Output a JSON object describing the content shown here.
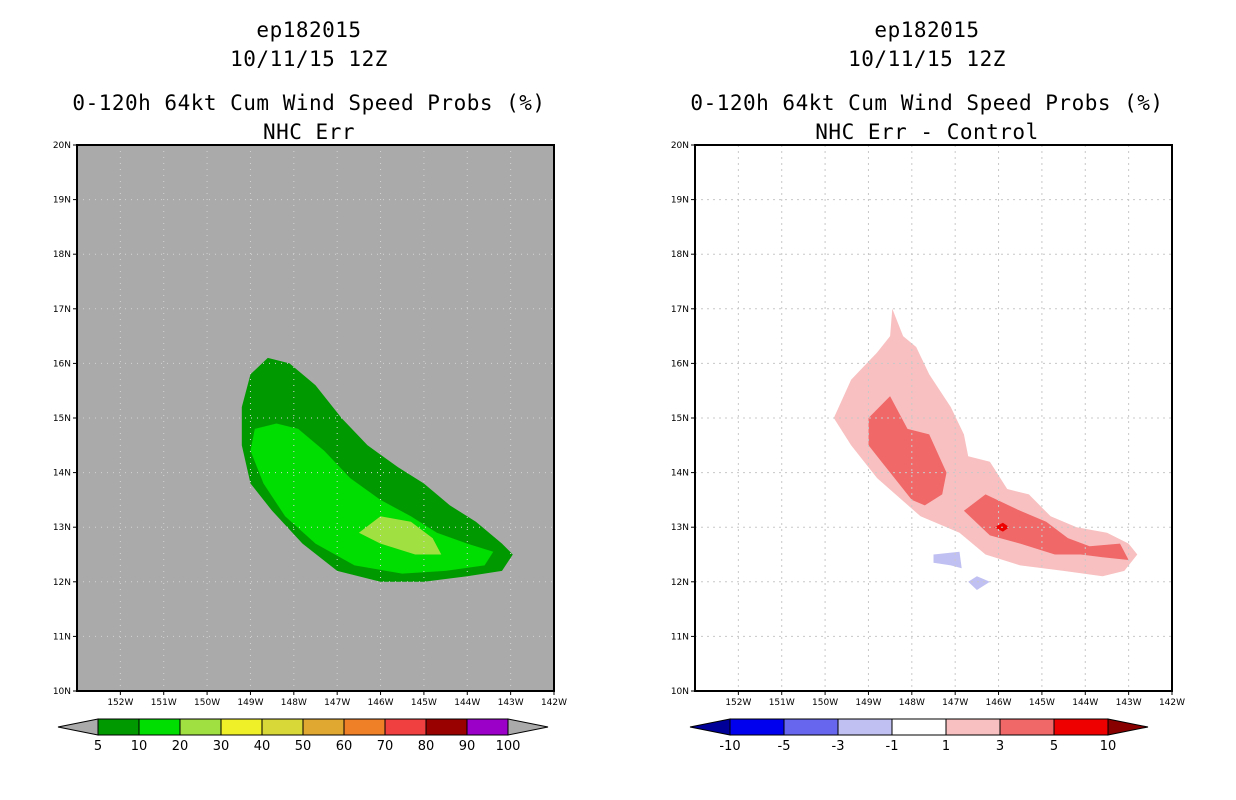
{
  "left": {
    "title": {
      "storm": "ep182015",
      "datetime": "10/11/15 12Z",
      "product": "0-120h 64kt Cum Wind Speed Probs (%)",
      "subtitle": "NHC Err"
    },
    "colorbar": {
      "labels": [
        "5",
        "10",
        "20",
        "30",
        "40",
        "50",
        "60",
        "70",
        "80",
        "90",
        "100"
      ],
      "colors": [
        "#009900",
        "#00dd00",
        "#a0e040",
        "#f0f028",
        "#d8d838",
        "#e0a830",
        "#f08028",
        "#f04040",
        "#990000",
        "#9a00c8"
      ],
      "under_color": "#aaaaaa",
      "over_color": "#aaaaaa"
    },
    "background_color": "#aaaaaa"
  },
  "right": {
    "title": {
      "storm": "ep182015",
      "datetime": "10/11/15 12Z",
      "product": "0-120h 64kt Cum Wind Speed Probs (%)",
      "subtitle": "NHC Err - Control"
    },
    "colorbar": {
      "labels": [
        "-10",
        "-5",
        "-3",
        "-1",
        "1",
        "3",
        "5",
        "10"
      ],
      "colors": [
        "#0000ee",
        "#6666ee",
        "#c0c0f2",
        "#ffffff",
        "#f8c0c0",
        "#f06868",
        "#ee0000"
      ],
      "under_color": "#000099",
      "over_color": "#880000"
    },
    "background_color": "#ffffff"
  },
  "chart_data": [
    {
      "type": "contour-map",
      "title": "ep182015 10/11/15 12Z 0-120h 64kt Cum Wind Speed Probs (%) NHC Err",
      "xlim": [
        -153,
        -142
      ],
      "ylim": [
        10,
        20
      ],
      "x_ticks": [
        -152,
        -151,
        -150,
        -149,
        -148,
        -147,
        -146,
        -145,
        -144,
        -143,
        -142
      ],
      "x_tick_labels": [
        "152W",
        "151W",
        "150W",
        "149W",
        "148W",
        "147W",
        "146W",
        "145W",
        "144W",
        "143W",
        "142W"
      ],
      "y_ticks": [
        10,
        11,
        12,
        13,
        14,
        15,
        16,
        17,
        18,
        19,
        20
      ],
      "y_tick_labels": [
        "10N",
        "11N",
        "12N",
        "13N",
        "14N",
        "15N",
        "16N",
        "17N",
        "18N",
        "19N",
        "20N"
      ],
      "grid": true,
      "levels": [
        {
          "range": "5-10",
          "color": "#009900",
          "polygon": [
            [
              -149.0,
              15.8
            ],
            [
              -148.6,
              16.1
            ],
            [
              -148.1,
              16.0
            ],
            [
              -147.5,
              15.6
            ],
            [
              -146.9,
              15.0
            ],
            [
              -146.3,
              14.5
            ],
            [
              -145.6,
              14.1
            ],
            [
              -145.0,
              13.8
            ],
            [
              -144.4,
              13.4
            ],
            [
              -143.8,
              13.1
            ],
            [
              -143.2,
              12.7
            ],
            [
              -142.95,
              12.5
            ],
            [
              -143.2,
              12.2
            ],
            [
              -144.0,
              12.1
            ],
            [
              -145.0,
              12.0
            ],
            [
              -146.0,
              12.0
            ],
            [
              -147.0,
              12.2
            ],
            [
              -147.8,
              12.7
            ],
            [
              -148.5,
              13.3
            ],
            [
              -149.0,
              13.8
            ],
            [
              -149.2,
              14.5
            ],
            [
              -149.2,
              15.2
            ]
          ]
        },
        {
          "range": "10-20",
          "color": "#00dd00",
          "polygon": [
            [
              -148.9,
              14.8
            ],
            [
              -148.4,
              14.9
            ],
            [
              -147.9,
              14.8
            ],
            [
              -147.3,
              14.4
            ],
            [
              -146.7,
              13.9
            ],
            [
              -146.0,
              13.5
            ],
            [
              -145.3,
              13.2
            ],
            [
              -144.7,
              12.9
            ],
            [
              -144.0,
              12.7
            ],
            [
              -143.4,
              12.55
            ],
            [
              -143.6,
              12.3
            ],
            [
              -144.5,
              12.2
            ],
            [
              -145.5,
              12.15
            ],
            [
              -146.6,
              12.3
            ],
            [
              -147.5,
              12.7
            ],
            [
              -148.2,
              13.2
            ],
            [
              -148.7,
              13.8
            ],
            [
              -149.0,
              14.4
            ]
          ]
        },
        {
          "range": "20-30",
          "color": "#a0e040",
          "polygon": [
            [
              -146.5,
              12.9
            ],
            [
              -146.0,
              13.2
            ],
            [
              -145.3,
              13.1
            ],
            [
              -144.8,
              12.8
            ],
            [
              -144.6,
              12.5
            ],
            [
              -145.2,
              12.5
            ],
            [
              -146.0,
              12.7
            ]
          ]
        }
      ]
    },
    {
      "type": "contour-map",
      "title": "ep182015 10/11/15 12Z 0-120h 64kt Cum Wind Speed Probs (%) NHC Err - Control",
      "xlim": [
        -153,
        -142
      ],
      "ylim": [
        10,
        20
      ],
      "x_ticks": [
        -152,
        -151,
        -150,
        -149,
        -148,
        -147,
        -146,
        -145,
        -144,
        -143,
        -142
      ],
      "x_tick_labels": [
        "152W",
        "151W",
        "150W",
        "149W",
        "148W",
        "147W",
        "146W",
        "145W",
        "144W",
        "143W",
        "142W"
      ],
      "y_ticks": [
        10,
        11,
        12,
        13,
        14,
        15,
        16,
        17,
        18,
        19,
        20
      ],
      "y_tick_labels": [
        "10N",
        "11N",
        "12N",
        "13N",
        "14N",
        "15N",
        "16N",
        "17N",
        "18N",
        "19N",
        "20N"
      ],
      "grid": true,
      "levels": [
        {
          "range": "1-3",
          "color": "#f8c0c0",
          "polygon": [
            [
              -149.8,
              15.0
            ],
            [
              -149.4,
              15.7
            ],
            [
              -148.8,
              16.2
            ],
            [
              -148.5,
              16.5
            ],
            [
              -148.45,
              17.0
            ],
            [
              -148.2,
              16.5
            ],
            [
              -147.9,
              16.3
            ],
            [
              -147.6,
              15.8
            ],
            [
              -147.1,
              15.2
            ],
            [
              -146.8,
              14.7
            ],
            [
              -146.7,
              14.3
            ],
            [
              -146.2,
              14.2
            ],
            [
              -145.8,
              13.7
            ],
            [
              -145.3,
              13.6
            ],
            [
              -144.8,
              13.2
            ],
            [
              -144.2,
              13.0
            ],
            [
              -143.5,
              12.9
            ],
            [
              -143.0,
              12.7
            ],
            [
              -142.8,
              12.5
            ],
            [
              -143.1,
              12.2
            ],
            [
              -143.6,
              12.1
            ],
            [
              -144.5,
              12.2
            ],
            [
              -145.5,
              12.3
            ],
            [
              -146.3,
              12.5
            ],
            [
              -146.9,
              12.9
            ],
            [
              -147.8,
              13.2
            ],
            [
              -148.8,
              13.9
            ],
            [
              -149.4,
              14.5
            ]
          ]
        },
        {
          "range": "3-5",
          "color": "#f06868",
          "polygon": [
            [
              -149.0,
              15.0
            ],
            [
              -148.5,
              15.4
            ],
            [
              -148.1,
              14.8
            ],
            [
              -147.6,
              14.7
            ],
            [
              -147.2,
              14.0
            ],
            [
              -147.3,
              13.6
            ],
            [
              -147.7,
              13.4
            ],
            [
              -148.0,
              13.5
            ],
            [
              -148.3,
              13.8
            ],
            [
              -148.7,
              14.2
            ],
            [
              -149.0,
              14.5
            ]
          ]
        },
        {
          "range": "3-5",
          "color": "#f06868",
          "polygon": [
            [
              -146.8,
              13.3
            ],
            [
              -146.3,
              13.6
            ],
            [
              -145.5,
              13.3
            ],
            [
              -144.9,
              13.1
            ],
            [
              -144.4,
              12.8
            ],
            [
              -143.9,
              12.65
            ],
            [
              -143.2,
              12.7
            ],
            [
              -143.0,
              12.4
            ],
            [
              -143.6,
              12.45
            ],
            [
              -144.1,
              12.5
            ],
            [
              -144.7,
              12.5
            ],
            [
              -145.5,
              12.7
            ],
            [
              -146.2,
              12.85
            ]
          ]
        },
        {
          "range": "5-10",
          "color": "#ee0000",
          "polygon": [
            [
              -146.1,
              13.0
            ],
            [
              -145.9,
              13.08
            ],
            [
              -145.75,
              13.0
            ],
            [
              -145.9,
              12.92
            ]
          ]
        },
        {
          "range": "-3 to -1",
          "color": "#c0c0f2",
          "polygon": [
            [
              -147.5,
              12.5
            ],
            [
              -146.9,
              12.55
            ],
            [
              -146.85,
              12.25
            ],
            [
              -147.1,
              12.3
            ],
            [
              -147.5,
              12.35
            ]
          ]
        },
        {
          "range": "-3 to -1",
          "color": "#c0c0f2",
          "polygon": [
            [
              -146.7,
              12.0
            ],
            [
              -146.5,
              12.1
            ],
            [
              -146.2,
              12.0
            ],
            [
              -146.5,
              11.85
            ]
          ]
        }
      ]
    }
  ]
}
